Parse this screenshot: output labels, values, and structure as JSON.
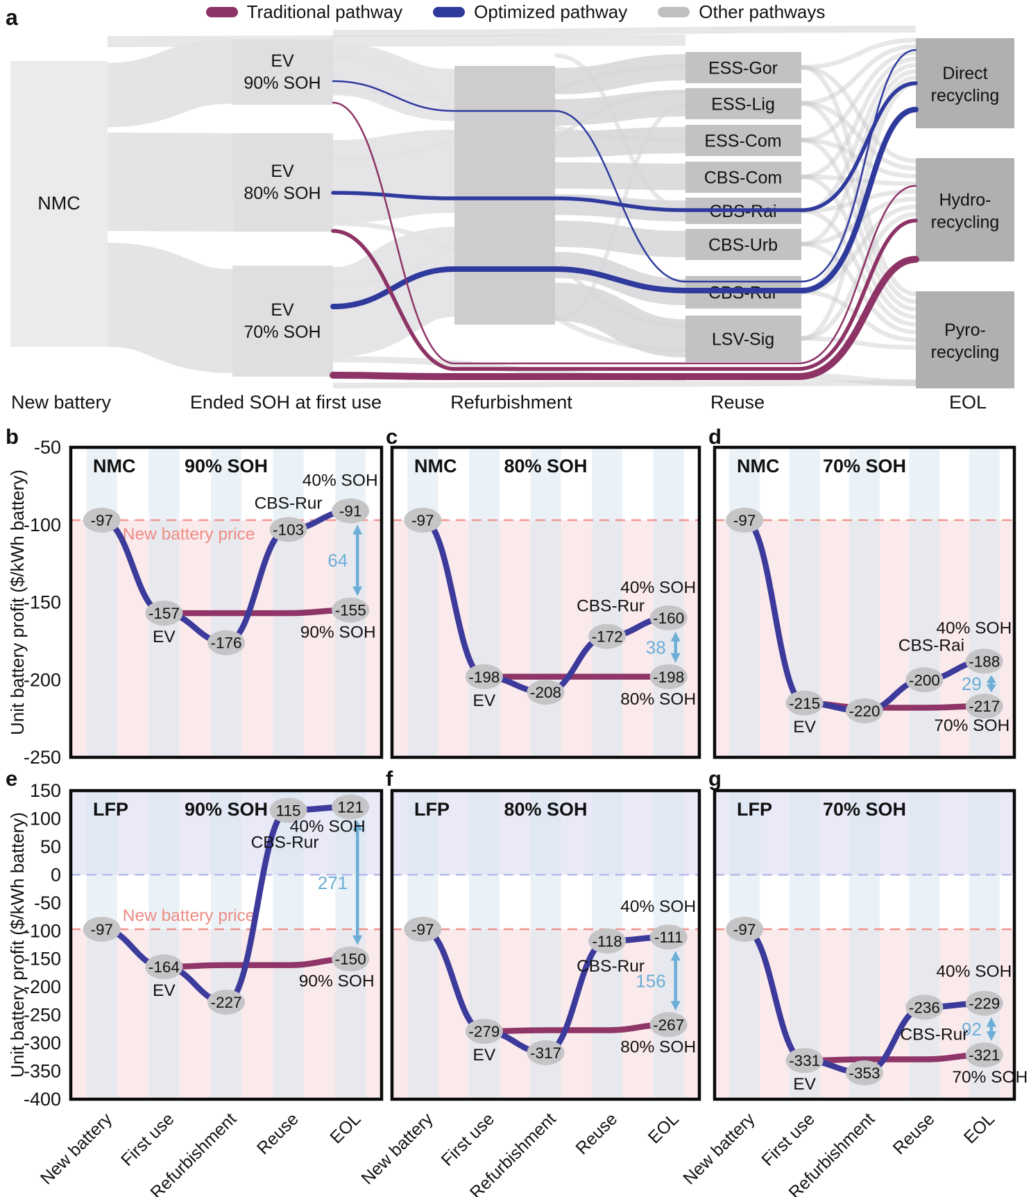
{
  "figure_title": "Battery pathway Sankey and unit battery profit charts",
  "colors": {
    "traditional": "#8d3366",
    "optimized": "#2f3a9d",
    "other": "#bfbfc1",
    "chart_blue": "#3c3a9b",
    "chart_maroon": "#8f3568",
    "arrow": "#6caed6",
    "price_line": "#f0948d",
    "price_text": "#ee8c84",
    "zero_line": "#b6bae9",
    "pink": "#fbeaec",
    "lavender": "#e9e9f8",
    "band": "#d9e8f1",
    "marker": "#c5c5c7"
  },
  "legend": {
    "items": [
      {
        "label": "Traditional pathway",
        "color": "#8d3366"
      },
      {
        "label": "Optimized pathway",
        "color": "#2f3a9d"
      },
      {
        "label": "Other pathways",
        "color": "#bfbfc1"
      }
    ]
  },
  "sankey": {
    "panel_label": "a",
    "stage_labels": [
      "New battery",
      "Ended SOH at first use",
      "Refurbishment",
      "Reuse",
      "EOL"
    ],
    "source_node": "NMC",
    "first_use_nodes": [
      [
        "EV",
        "90% SOH"
      ],
      [
        "EV",
        "80% SOH"
      ],
      [
        "EV",
        "70% SOH"
      ]
    ],
    "refurbishment_node": "Refurbishment",
    "reuse_nodes": [
      "ESS-Gor",
      "ESS-Lig",
      "ESS-Com",
      "CBS-Com",
      "CBS-Rai",
      "CBS-Urb",
      "CBS-Rur",
      "LSV-Sig"
    ],
    "eol_nodes": [
      [
        "Direct",
        "recycling"
      ],
      [
        "Hydro-",
        "recycling"
      ],
      [
        "Pyro-",
        "recycling"
      ]
    ]
  },
  "y_axis_label": "Unit battery profit ($/kWh battery)",
  "x_categories": [
    "New battery",
    "First use",
    "Refurbishment",
    "Reuse",
    "EOL"
  ],
  "chart_data": [
    {
      "type": "line",
      "panel": "b",
      "chemistry": "NMC",
      "soh_title": "90% SOH",
      "x_categories": [
        "New battery",
        "First use",
        "Refurbishment",
        "Reuse",
        "EOL"
      ],
      "ylim": [
        -250,
        -50
      ],
      "yticks": [
        -50,
        -100,
        -150,
        -200,
        -250
      ],
      "show_yticks": true,
      "optimized": [
        -97,
        -157,
        -176,
        -103,
        -91
      ],
      "traditional": [
        null,
        -157,
        -157,
        -157,
        -155
      ],
      "ev_label": "EV",
      "reuse_label": "CBS-Rur",
      "eol_top_label": "40% SOH",
      "eol_bottom_label": "90% SOH",
      "gap": 64,
      "price": -97,
      "price_label": "New battery price",
      "offsets": {
        "reuse": [
          0,
          -30
        ],
        "eol_top": [
          -15,
          -36
        ],
        "eol_bottom": [
          -18,
          40
        ],
        "price": [
          30,
          28
        ],
        "ev": [
          0,
          42
        ]
      }
    },
    {
      "type": "line",
      "panel": "c",
      "chemistry": "NMC",
      "soh_title": "80% SOH",
      "x_categories": [
        "New battery",
        "First use",
        "Refurbishment",
        "Reuse",
        "EOL"
      ],
      "ylim": [
        -250,
        -50
      ],
      "yticks": [
        -50,
        -100,
        -150,
        -200,
        -250
      ],
      "show_yticks": false,
      "optimized": [
        -97,
        -198,
        -208,
        -172,
        -160
      ],
      "traditional": [
        null,
        -198,
        -198,
        -198,
        -198
      ],
      "ev_label": "EV",
      "reuse_label": "CBS-Rur",
      "eol_top_label": "40% SOH",
      "eol_bottom_label": "80% SOH",
      "gap": 38,
      "price": -97,
      "price_label": null,
      "offsets": {
        "reuse": [
          5,
          -36
        ],
        "eol_top": [
          -15,
          -36
        ],
        "eol_bottom": [
          -15,
          40
        ],
        "price": [
          30,
          28
        ],
        "ev": [
          0,
          42
        ]
      }
    },
    {
      "type": "line",
      "panel": "d",
      "chemistry": "NMC",
      "soh_title": "70% SOH",
      "x_categories": [
        "New battery",
        "First use",
        "Refurbishment",
        "Reuse",
        "EOL"
      ],
      "ylim": [
        -250,
        -50
      ],
      "yticks": [
        -50,
        -100,
        -150,
        -200,
        -250
      ],
      "show_yticks": false,
      "optimized": [
        -97,
        -215,
        -220,
        -200,
        -188
      ],
      "traditional": [
        null,
        -215,
        -218,
        -218,
        -217
      ],
      "ev_label": "EV",
      "reuse_label": "CBS-Rai",
      "eol_top_label": "40% SOH",
      "eol_bottom_label": "70% SOH",
      "gap": 29,
      "price": -97,
      "price_label": null,
      "offsets": {
        "reuse": [
          10,
          -42
        ],
        "eol_top": [
          -15,
          -40
        ],
        "eol_bottom": [
          -18,
          36
        ],
        "price": [
          30,
          28
        ],
        "ev": [
          0,
          42
        ]
      }
    },
    {
      "type": "line",
      "panel": "e",
      "chemistry": "LFP",
      "soh_title": "90% SOH",
      "x_categories": [
        "New battery",
        "First use",
        "Refurbishment",
        "Reuse",
        "EOL"
      ],
      "ylim": [
        -400,
        150
      ],
      "yticks": [
        150,
        100,
        50,
        0,
        -50,
        -100,
        -150,
        -200,
        -250,
        -300,
        -350,
        -400
      ],
      "show_yticks": true,
      "optimized": [
        -97,
        -164,
        -227,
        115,
        121
      ],
      "traditional": [
        null,
        -164,
        -161,
        -161,
        -150
      ],
      "ev_label": "EV",
      "reuse_label": "CBS-Rur",
      "eol_top_label": "40% SOH",
      "eol_bottom_label": "90% SOH",
      "gap": 271,
      "price": -97,
      "price_label": "New battery price",
      "offsets": {
        "reuse": [
          -5,
          54
        ],
        "eol_top": [
          -33,
          36
        ],
        "eol_bottom": [
          -20,
          40
        ],
        "price": [
          30,
          -12
        ],
        "ev": [
          0,
          42
        ]
      }
    },
    {
      "type": "line",
      "panel": "f",
      "chemistry": "LFP",
      "soh_title": "80% SOH",
      "x_categories": [
        "New battery",
        "First use",
        "Refurbishment",
        "Reuse",
        "EOL"
      ],
      "ylim": [
        -400,
        150
      ],
      "yticks": [
        150,
        100,
        50,
        0,
        -50,
        -100,
        -150,
        -200,
        -250,
        -300,
        -350,
        -400
      ],
      "show_yticks": false,
      "optimized": [
        -97,
        -279,
        -317,
        -118,
        -111
      ],
      "traditional": [
        null,
        -279,
        -277,
        -277,
        -267
      ],
      "ev_label": "EV",
      "reuse_label": "CBS-Rur",
      "eol_top_label": "40% SOH",
      "eol_bottom_label": "80% SOH",
      "gap": 156,
      "price": -97,
      "price_label": null,
      "offsets": {
        "reuse": [
          5,
          44
        ],
        "eol_top": [
          -15,
          -36
        ],
        "eol_bottom": [
          -15,
          40
        ],
        "price": [
          30,
          28
        ],
        "ev": [
          0,
          42
        ]
      }
    },
    {
      "type": "line",
      "panel": "g",
      "chemistry": "LFP",
      "soh_title": "70% SOH",
      "x_categories": [
        "New battery",
        "First use",
        "Refurbishment",
        "Reuse",
        "EOL"
      ],
      "ylim": [
        -400,
        150
      ],
      "yticks": [
        150,
        100,
        50,
        0,
        -50,
        -100,
        -150,
        -200,
        -250,
        -300,
        -350,
        -400
      ],
      "show_yticks": false,
      "optimized": [
        -97,
        -331,
        -353,
        -236,
        -229
      ],
      "traditional": [
        null,
        -331,
        -329,
        -329,
        -321
      ],
      "ev_label": "EV",
      "reuse_label": "CBS-Rur",
      "eol_top_label": "40% SOH",
      "eol_bottom_label": "70% SOH",
      "gap": 92,
      "price": -97,
      "price_label": null,
      "offsets": {
        "reuse": [
          14,
          47
        ],
        "eol_top": [
          -15,
          -38
        ],
        "eol_bottom": [
          8,
          40
        ],
        "price": [
          30,
          28
        ],
        "ev": [
          0,
          42
        ]
      }
    }
  ]
}
